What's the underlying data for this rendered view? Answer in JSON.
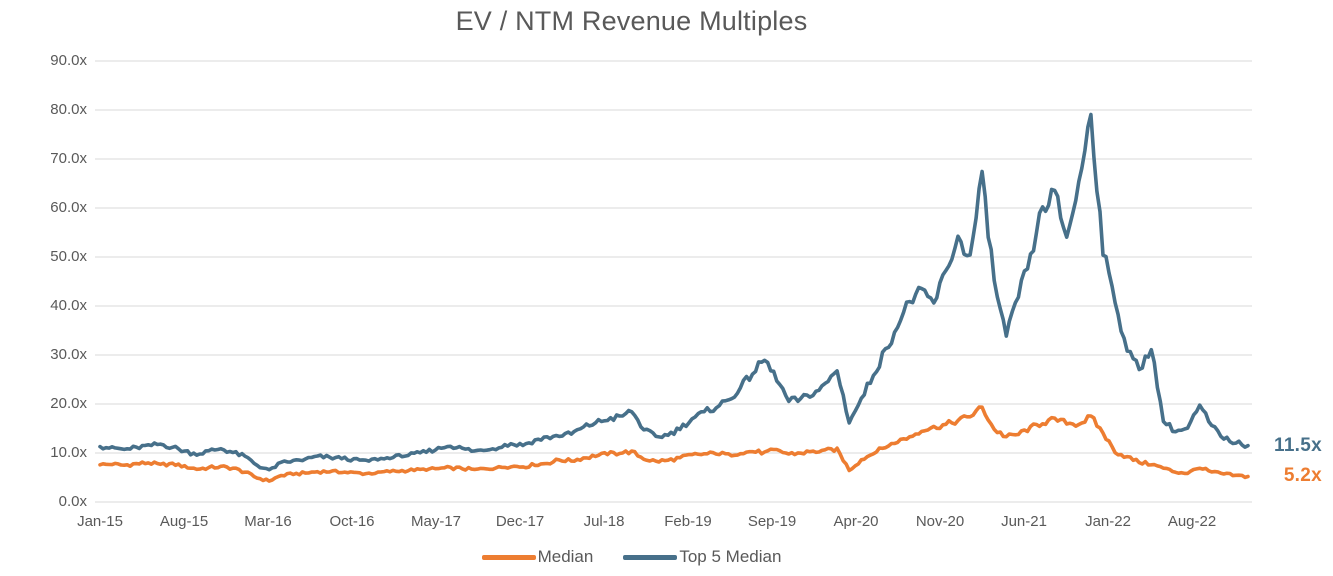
{
  "chart_data": {
    "type": "line",
    "title": "EV / NTM Revenue Multiples",
    "grid": true,
    "legend_position": "bottom",
    "ylim": [
      0,
      90
    ],
    "y_step": 10,
    "y_tick_labels": [
      "90.0x",
      "80.0x",
      "70.0x",
      "60.0x",
      "50.0x",
      "40.0x",
      "30.0x",
      "20.0x",
      "10.0x",
      "0.0x"
    ],
    "x_tick_labels": [
      "Jan-15",
      "Aug-15",
      "Mar-16",
      "Oct-16",
      "May-17",
      "Dec-17",
      "Jul-18",
      "Feb-19",
      "Sep-19",
      "Apr-20",
      "Nov-20",
      "Jun-21",
      "Jan-22",
      "Aug-22"
    ],
    "x": [
      "Jan-15",
      "Feb-15",
      "Mar-15",
      "Apr-15",
      "May-15",
      "Jun-15",
      "Jul-15",
      "Aug-15",
      "Sep-15",
      "Oct-15",
      "Nov-15",
      "Dec-15",
      "Jan-16",
      "Feb-16",
      "Mar-16",
      "Apr-16",
      "May-16",
      "Jun-16",
      "Jul-16",
      "Aug-16",
      "Sep-16",
      "Oct-16",
      "Nov-16",
      "Dec-16",
      "Jan-17",
      "Feb-17",
      "Mar-17",
      "Apr-17",
      "May-17",
      "Jun-17",
      "Jul-17",
      "Aug-17",
      "Sep-17",
      "Oct-17",
      "Nov-17",
      "Dec-17",
      "Jan-18",
      "Feb-18",
      "Mar-18",
      "Apr-18",
      "May-18",
      "Jun-18",
      "Jul-18",
      "Aug-18",
      "Sep-18",
      "Oct-18",
      "Nov-18",
      "Dec-18",
      "Jan-19",
      "Feb-19",
      "Mar-19",
      "Apr-19",
      "May-19",
      "Jun-19",
      "Jul-19",
      "Aug-19",
      "Sep-19",
      "Oct-19",
      "Nov-19",
      "Dec-19",
      "Jan-20",
      "Feb-20",
      "Mar-20",
      "Apr-20",
      "May-20",
      "Jun-20",
      "Jul-20",
      "Aug-20",
      "Sep-20",
      "Oct-20",
      "Nov-20",
      "Dec-20",
      "Jan-21",
      "Feb-21",
      "Mar-21",
      "Apr-21",
      "May-21",
      "Jun-21",
      "Jul-21",
      "Aug-21",
      "Sep-21",
      "Oct-21",
      "Nov-21",
      "Dec-21",
      "Jan-22",
      "Feb-22",
      "Mar-22",
      "Apr-22",
      "May-22",
      "Jun-22",
      "Jul-22",
      "Aug-22",
      "Sep-22",
      "Oct-22",
      "Nov-22",
      "Dec-22"
    ],
    "series": [
      {
        "name": "Median",
        "color": "#ED7D31",
        "end_label": "5.2x",
        "values": [
          7.6,
          7.7,
          7.5,
          7.8,
          8.0,
          7.6,
          7.8,
          7.3,
          6.7,
          7.0,
          7.2,
          6.9,
          6.1,
          4.9,
          4.3,
          5.4,
          5.7,
          5.9,
          6.2,
          6.2,
          6.1,
          6.0,
          5.8,
          6.0,
          6.2,
          6.4,
          6.5,
          6.6,
          6.8,
          7.0,
          6.8,
          6.6,
          6.8,
          7.1,
          7.3,
          7.2,
          7.6,
          7.9,
          8.6,
          8.4,
          9.0,
          9.4,
          9.8,
          10.0,
          10.3,
          8.8,
          8.3,
          8.5,
          9.0,
          9.6,
          9.8,
          9.9,
          9.7,
          10.0,
          10.3,
          10.1,
          10.6,
          9.8,
          10.0,
          10.3,
          10.5,
          10.8,
          6.5,
          8.6,
          10.0,
          11.2,
          12.3,
          13.3,
          14.6,
          15.3,
          15.8,
          16.6,
          17.5,
          19.3,
          14.8,
          13.3,
          13.8,
          15.2,
          16.1,
          16.9,
          16.1,
          15.9,
          17.4,
          14.1,
          10.2,
          9.2,
          8.1,
          7.7,
          6.9,
          6.1,
          5.9,
          7.0,
          6.1,
          5.7,
          5.4,
          5.2
        ]
      },
      {
        "name": "Top 5 Median",
        "color": "#47708A",
        "end_label": "11.5x",
        "values": [
          11.3,
          11.1,
          10.7,
          11.1,
          11.5,
          11.8,
          11.2,
          10.4,
          9.7,
          10.4,
          10.9,
          10.1,
          9.3,
          7.5,
          6.5,
          8.0,
          8.4,
          8.7,
          9.3,
          9.1,
          8.9,
          8.7,
          8.4,
          8.7,
          9.0,
          9.4,
          9.8,
          10.2,
          11.0,
          11.5,
          10.9,
          10.4,
          10.7,
          11.2,
          11.9,
          11.6,
          12.6,
          13.2,
          13.5,
          13.9,
          15.2,
          16.2,
          16.8,
          17.4,
          18.5,
          14.8,
          13.3,
          13.7,
          15.0,
          17.0,
          18.3,
          19.4,
          20.8,
          23.3,
          26.3,
          29.0,
          25.0,
          20.5,
          21.0,
          22.0,
          24.0,
          26.8,
          16.3,
          21.0,
          26.0,
          31.0,
          36.0,
          41.0,
          43.0,
          40.5,
          47.0,
          54.0,
          50.0,
          66.6,
          45.0,
          33.6,
          42.0,
          50.0,
          60.0,
          63.0,
          54.0,
          65.0,
          79.6,
          51.0,
          41.0,
          31.0,
          27.0,
          31.5,
          16.5,
          14.4,
          15.0,
          19.6,
          15.5,
          13.0,
          12.1,
          11.5
        ]
      }
    ]
  },
  "colors": {
    "median_line": "#ED7D31",
    "top5_line": "#47708A",
    "title_text": "#595959",
    "axis_text": "#595959",
    "gridline": "#D9D9D9",
    "background": "#FFFFFF"
  }
}
